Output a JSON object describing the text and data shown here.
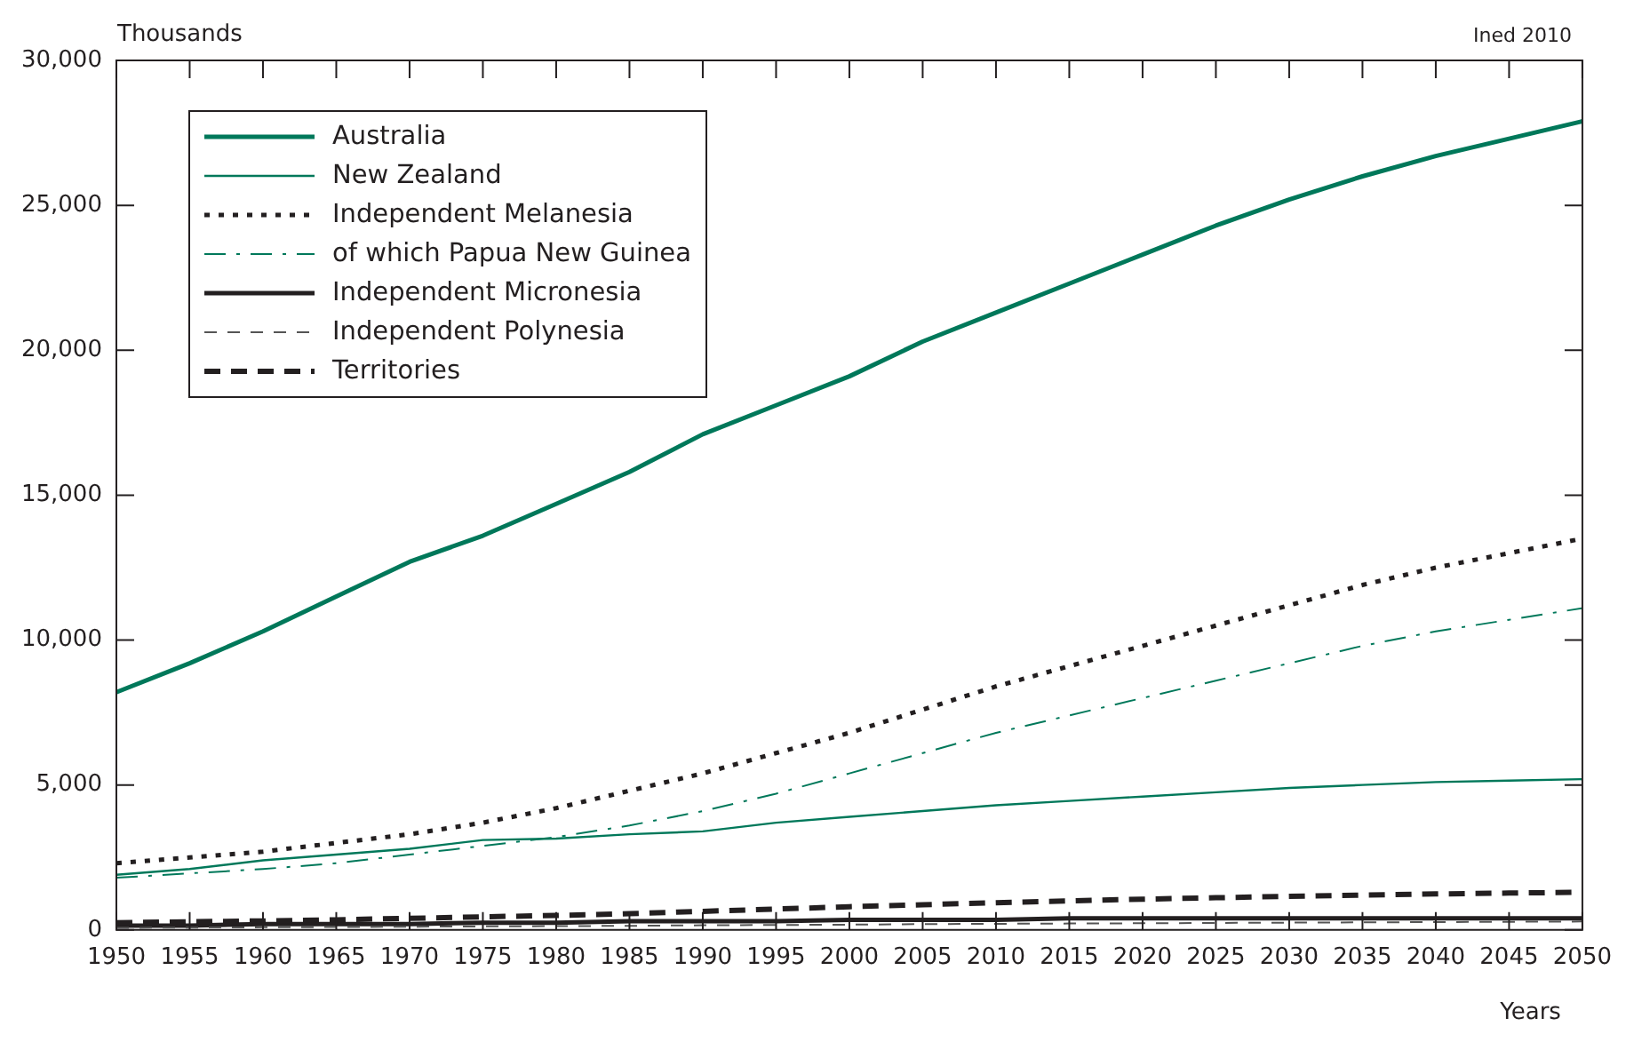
{
  "chart_data": {
    "type": "line",
    "ylabel": "Thousands",
    "xlabel": "Years",
    "annotations": [
      "Ined 2010"
    ],
    "x": [
      1950,
      1955,
      1960,
      1965,
      1970,
      1975,
      1980,
      1985,
      1990,
      1995,
      2000,
      2005,
      2010,
      2015,
      2020,
      2025,
      2030,
      2035,
      2040,
      2045,
      2050
    ],
    "xlim": [
      1950,
      2050
    ],
    "xticks": [
      1950,
      1955,
      1960,
      1965,
      1970,
      1975,
      1980,
      1985,
      1990,
      1995,
      2000,
      2005,
      2010,
      2015,
      2020,
      2025,
      2030,
      2035,
      2040,
      2045,
      2050
    ],
    "ylim": [
      0,
      30000
    ],
    "yticks": [
      {
        "value": 0,
        "label": "0"
      },
      {
        "value": 5000,
        "label": "5,000"
      },
      {
        "value": 10000,
        "label": "10,000"
      },
      {
        "value": 15000,
        "label": "15,000"
      },
      {
        "value": 20000,
        "label": "20,000"
      },
      {
        "value": 25000,
        "label": "25,000"
      },
      {
        "value": 30000,
        "label": "30,000"
      }
    ],
    "grid": false,
    "legend": "top left",
    "marker": "none",
    "series": [
      {
        "name": "Australia",
        "color": "#00785a",
        "line_style": "solid",
        "values": [
          8200,
          9200,
          10300,
          11500,
          12700,
          13600,
          14700,
          15800,
          17100,
          18100,
          19100,
          20300,
          21300,
          22300,
          23300,
          24300,
          25200,
          26000,
          26700,
          27300,
          27900
        ]
      },
      {
        "name": "New Zealand",
        "color": "#00785a",
        "line_style": "solid",
        "values": [
          1900,
          2100,
          2400,
          2600,
          2800,
          3100,
          3150,
          3300,
          3400,
          3700,
          3900,
          4100,
          4300,
          4450,
          4600,
          4750,
          4900,
          5000,
          5100,
          5150,
          5200
        ]
      },
      {
        "name": "Independent Melanesia",
        "color": "#231f20",
        "line_style": "dotted",
        "values": [
          2300,
          2500,
          2700,
          3000,
          3300,
          3700,
          4200,
          4800,
          5400,
          6100,
          6800,
          7600,
          8400,
          9100,
          9800,
          10500,
          11200,
          11900,
          12500,
          13000,
          13500
        ]
      },
      {
        "name": "of which Papua New Guinea",
        "color": "#00785a",
        "line_style": "dashdot",
        "values": [
          1800,
          1950,
          2100,
          2300,
          2600,
          2900,
          3200,
          3600,
          4100,
          4700,
          5400,
          6100,
          6800,
          7400,
          8000,
          8600,
          9200,
          9800,
          10300,
          10700,
          11100
        ]
      },
      {
        "name": "Independent Micronesia",
        "color": "#231f20",
        "line_style": "solid",
        "values": [
          150,
          150,
          200,
          200,
          200,
          250,
          250,
          300,
          300,
          300,
          350,
          350,
          350,
          400,
          400,
          400,
          400,
          400,
          400,
          400,
          400
        ]
      },
      {
        "name": "Independent Polynesia",
        "color": "#555555",
        "line_style": "dashed",
        "values": [
          70,
          80,
          90,
          100,
          110,
          120,
          130,
          140,
          160,
          170,
          180,
          200,
          210,
          220,
          230,
          240,
          250,
          260,
          270,
          280,
          290
        ]
      },
      {
        "name": "Territories",
        "color": "#231f20",
        "line_style": "dashed",
        "values": [
          250,
          280,
          310,
          350,
          400,
          450,
          500,
          560,
          640,
          720,
          800,
          870,
          940,
          1000,
          1060,
          1110,
          1160,
          1200,
          1240,
          1270,
          1300
        ]
      }
    ]
  }
}
